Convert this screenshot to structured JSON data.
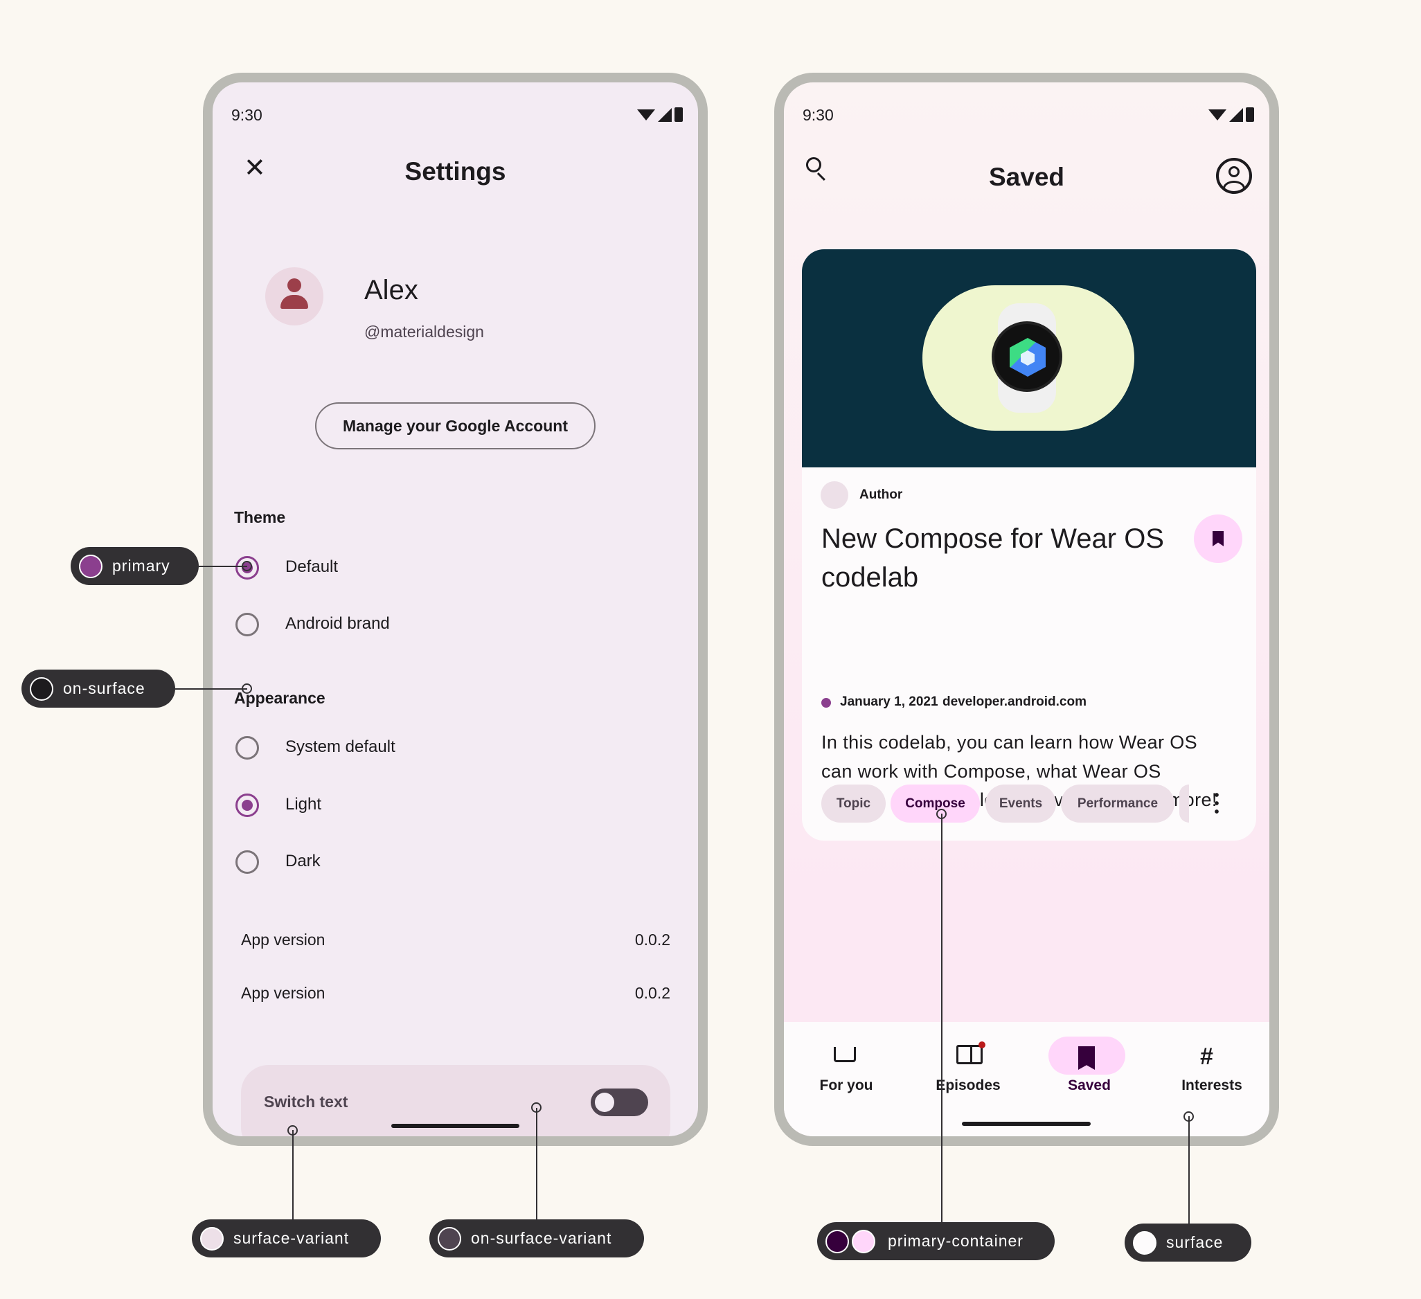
{
  "settings": {
    "time": "9:30",
    "title": "Settings",
    "name": "Alex",
    "handle": "@materialdesign",
    "manage_button": "Manage your Google Account",
    "theme_heading": "Theme",
    "theme_options": [
      {
        "label": "Default",
        "selected": true
      },
      {
        "label": "Android brand",
        "selected": false
      }
    ],
    "appearance_heading": "Appearance",
    "appearance_options": [
      {
        "label": "System default",
        "selected": false
      },
      {
        "label": "Light",
        "selected": true
      },
      {
        "label": "Dark",
        "selected": false
      }
    ],
    "rows": [
      {
        "label": "App version",
        "value": "0.0.2"
      },
      {
        "label": "App version",
        "value": "0.0.2"
      }
    ],
    "switch_label": "Switch text",
    "switch_on": false
  },
  "saved": {
    "time": "9:30",
    "title": "Saved",
    "author": "Author",
    "headline": "New Compose for Wear OS codelab",
    "date": "January 1, 2021",
    "source": "developer.android.com",
    "body": "In this codelab, you can learn how Wear OS can work with Compose, what Wear OS specific composables are available, and more!",
    "chips": [
      {
        "label": "Topic",
        "selected": false
      },
      {
        "label": "Compose",
        "selected": true
      },
      {
        "label": "Events",
        "selected": false
      },
      {
        "label": "Performance",
        "selected": false
      }
    ],
    "nav": [
      {
        "label": "For you",
        "icon": "inbox-sparkle-icon"
      },
      {
        "label": "Episodes",
        "icon": "book-icon",
        "badge": true
      },
      {
        "label": "Saved",
        "icon": "bookmarks-icon",
        "selected": true
      },
      {
        "label": "Interests",
        "icon": "hash-icon"
      }
    ]
  },
  "annotations": {
    "primary": "primary",
    "on_surface": "on-surface",
    "surface_variant": "surface-variant",
    "on_surface_variant": "on-surface-variant",
    "primary_container": "primary-container",
    "surface": "surface"
  },
  "colors": {
    "primary": "#8b3f8e",
    "on_surface": "#1d1b1e",
    "surface_variant": "#ede0e8",
    "on_surface_variant": "#4f4450",
    "primary_container": "#ffd6fa",
    "on_primary_container": "#36003c",
    "surface": "#fdfbfc",
    "card_image_bg": "#0a3040"
  }
}
